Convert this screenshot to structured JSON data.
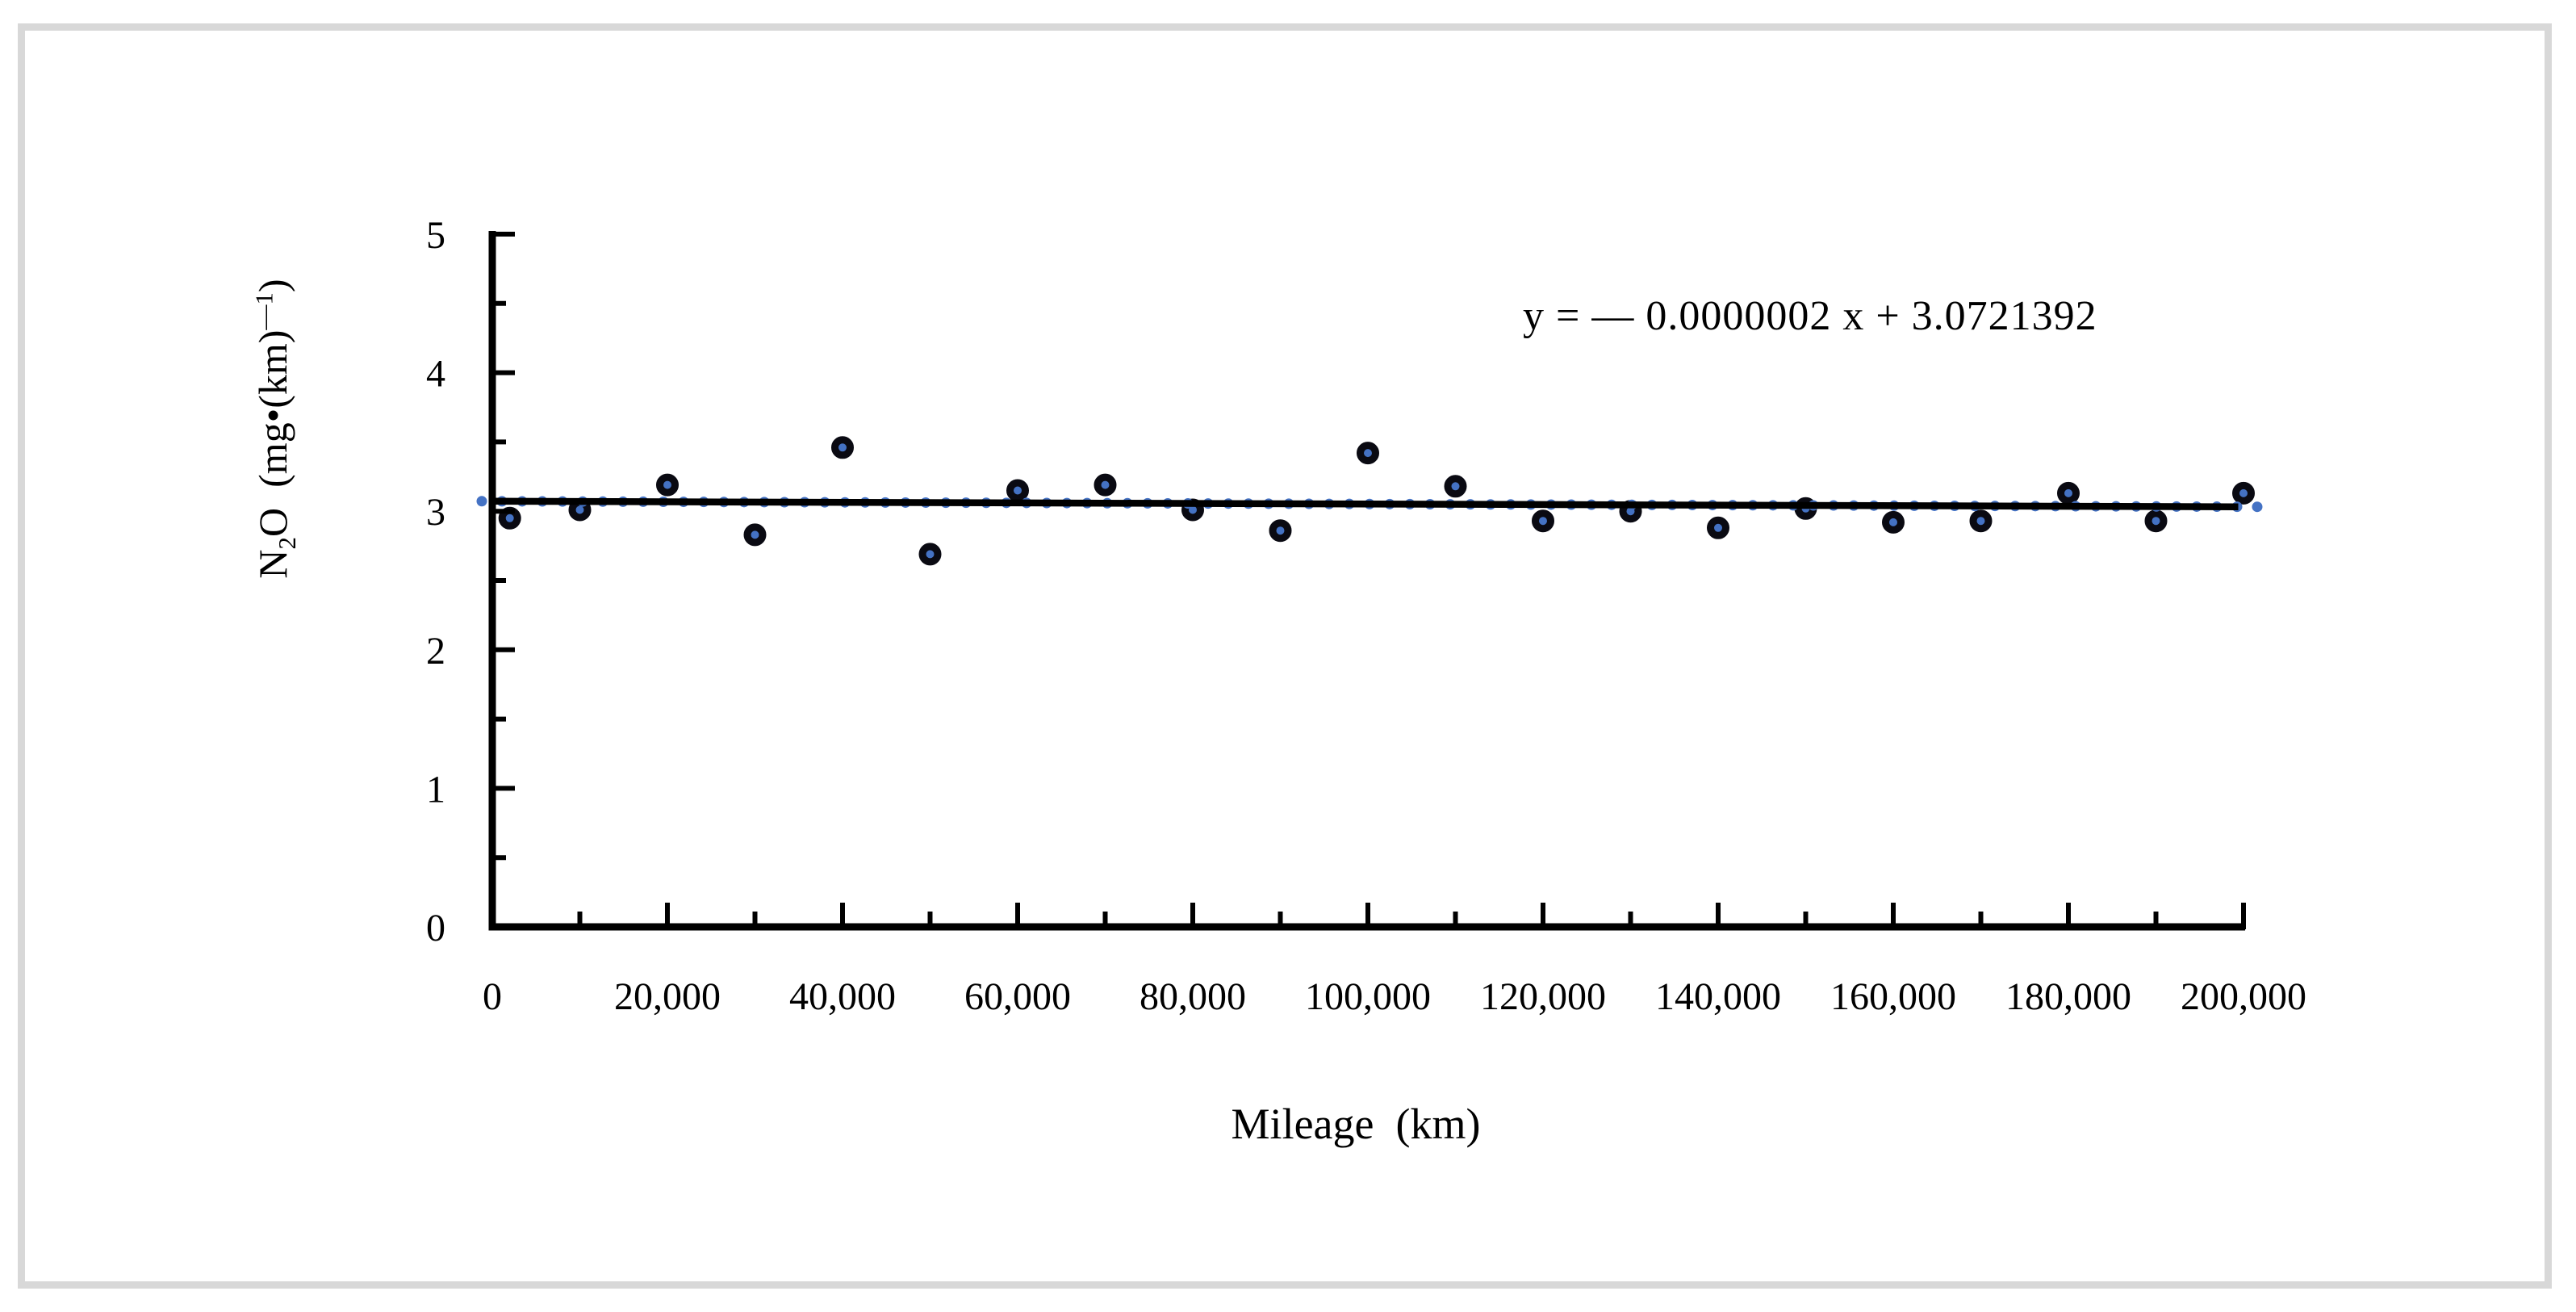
{
  "chart_data": {
    "type": "scatter",
    "title": "",
    "xlabel": "Mileage  (km)",
    "ylabel": "N2O (mg•(km)—1)",
    "ylabel_parts": {
      "base1": "N",
      "sub": "2",
      "base2": "O  (mg•(km)",
      "sup": "—1",
      "base3": ")"
    },
    "equation": "y = — 0.0000002 x + 3.0721392",
    "xlim": [
      0,
      200000
    ],
    "ylim": [
      0,
      5
    ],
    "x_major_ticks": [
      0,
      20000,
      40000,
      60000,
      80000,
      100000,
      120000,
      140000,
      160000,
      180000,
      200000
    ],
    "x_tick_labels": [
      "0",
      "20,000",
      "40,000",
      "60,000",
      "80,000",
      "100,000",
      "120,000",
      "140,000",
      "160,000",
      "180,000",
      "200,000"
    ],
    "x_minor_ticks": [
      10000,
      30000,
      50000,
      70000,
      90000,
      110000,
      130000,
      150000,
      170000,
      190000
    ],
    "y_major_ticks": [
      0,
      1,
      2,
      3,
      4,
      5
    ],
    "y_tick_labels": [
      "0",
      "1",
      "2",
      "3",
      "4",
      "5"
    ],
    "y_minor_ticks": [
      0.5,
      1.5,
      2.5,
      3.5,
      4.5
    ],
    "points": [
      [
        2000,
        2.95
      ],
      [
        10000,
        3.01
      ],
      [
        20000,
        3.19
      ],
      [
        30000,
        2.83
      ],
      [
        40000,
        3.46
      ],
      [
        50000,
        2.69
      ],
      [
        60000,
        3.15
      ],
      [
        70000,
        3.19
      ],
      [
        80000,
        3.01
      ],
      [
        90000,
        2.86
      ],
      [
        100000,
        3.42
      ],
      [
        110000,
        3.18
      ],
      [
        120000,
        2.93
      ],
      [
        130000,
        3.0
      ],
      [
        140000,
        2.88
      ],
      [
        150000,
        3.02
      ],
      [
        160000,
        2.92
      ],
      [
        170000,
        2.93
      ],
      [
        180000,
        3.13
      ],
      [
        190000,
        2.93
      ],
      [
        200000,
        3.13
      ]
    ],
    "trendline": {
      "slope": -2e-07,
      "intercept": 3.0721392
    },
    "grid": false,
    "legend": "none",
    "colors": {
      "marker_fill": "#4472C4",
      "marker_ring": "#0a0a12",
      "trend_solid": "#000000",
      "trend_dotted": "#4472C4",
      "axis": "#000000",
      "frame": "#d8d8d8"
    }
  }
}
